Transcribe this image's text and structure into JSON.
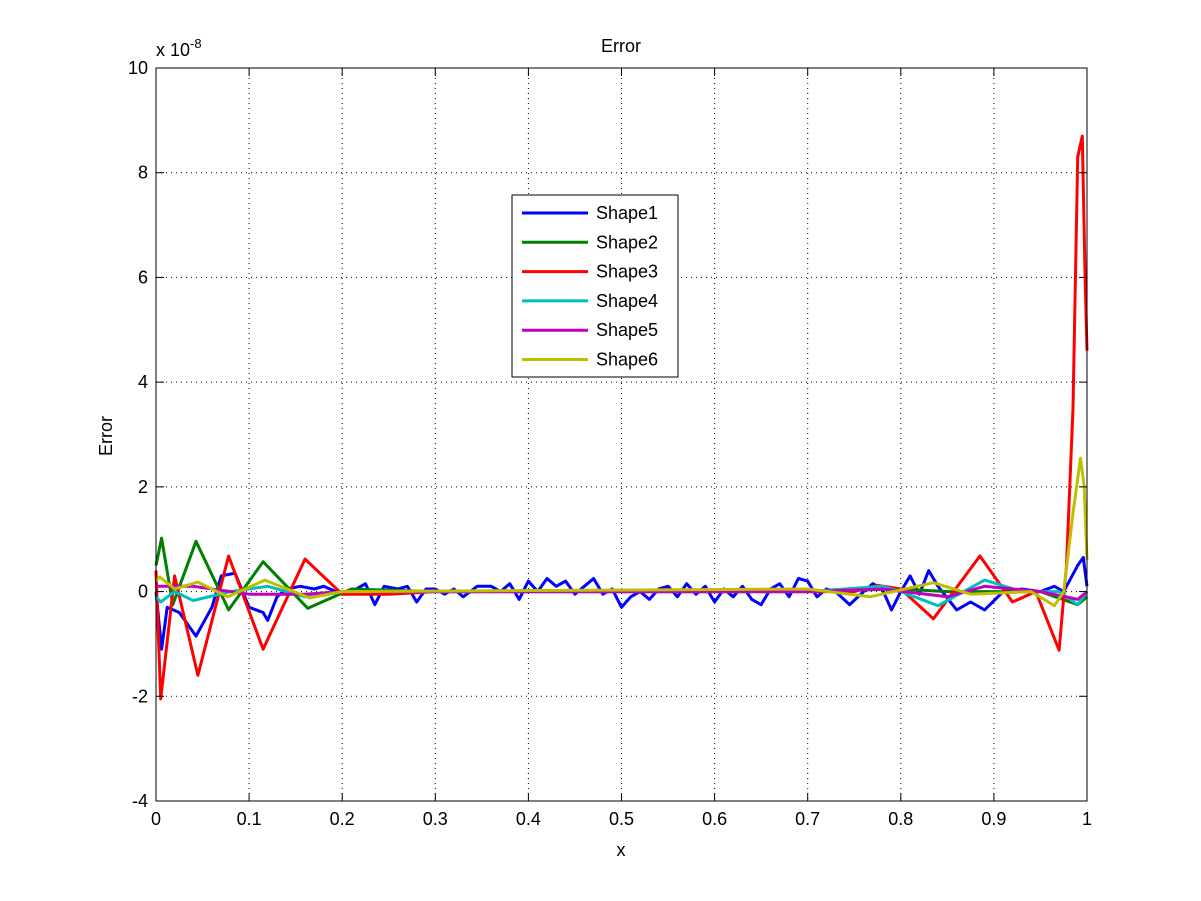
{
  "chart_data": {
    "type": "line",
    "title": "Error",
    "xlabel": "x",
    "ylabel": "Error",
    "y_exponent_label": "x 10",
    "y_exponent_power": "-8",
    "xlim": [
      0,
      1
    ],
    "ylim": [
      -4,
      10
    ],
    "xticks": [
      "0",
      "0.1",
      "0.2",
      "0.3",
      "0.4",
      "0.5",
      "0.6",
      "0.7",
      "0.8",
      "0.9",
      "1"
    ],
    "yticks": [
      "-4",
      "-2",
      "0",
      "2",
      "4",
      "6",
      "8",
      "10"
    ],
    "grid": true,
    "legend_position": "upper-center",
    "series": [
      {
        "name": "Shape1",
        "color": "#0000ff",
        "points": [
          [
            0,
            0
          ],
          [
            0.006,
            -1.1
          ],
          [
            0.012,
            -0.3
          ],
          [
            0.025,
            -0.4
          ],
          [
            0.043,
            -0.85
          ],
          [
            0.06,
            -0.3
          ],
          [
            0.07,
            0.3
          ],
          [
            0.085,
            0.35
          ],
          [
            0.1,
            -0.3
          ],
          [
            0.115,
            -0.4
          ],
          [
            0.12,
            -0.55
          ],
          [
            0.13,
            -0.1
          ],
          [
            0.14,
            0.05
          ],
          [
            0.155,
            0.1
          ],
          [
            0.17,
            0.05
          ],
          [
            0.18,
            0.1
          ],
          [
            0.2,
            -0.05
          ],
          [
            0.215,
            0.05
          ],
          [
            0.225,
            0.15
          ],
          [
            0.235,
            -0.25
          ],
          [
            0.245,
            0.1
          ],
          [
            0.26,
            0.05
          ],
          [
            0.27,
            0.1
          ],
          [
            0.28,
            -0.2
          ],
          [
            0.29,
            0.05
          ],
          [
            0.3,
            0.05
          ],
          [
            0.31,
            -0.05
          ],
          [
            0.32,
            0.05
          ],
          [
            0.33,
            -0.1
          ],
          [
            0.345,
            0.1
          ],
          [
            0.36,
            0.1
          ],
          [
            0.37,
            0.0
          ],
          [
            0.38,
            0.15
          ],
          [
            0.39,
            -0.15
          ],
          [
            0.4,
            0.2
          ],
          [
            0.41,
            0.0
          ],
          [
            0.42,
            0.25
          ],
          [
            0.43,
            0.1
          ],
          [
            0.44,
            0.2
          ],
          [
            0.45,
            -0.05
          ],
          [
            0.46,
            0.1
          ],
          [
            0.47,
            0.25
          ],
          [
            0.48,
            -0.05
          ],
          [
            0.49,
            0.05
          ],
          [
            0.5,
            -0.3
          ],
          [
            0.51,
            -0.1
          ],
          [
            0.52,
            0.0
          ],
          [
            0.53,
            -0.15
          ],
          [
            0.54,
            0.05
          ],
          [
            0.55,
            0.1
          ],
          [
            0.56,
            -0.1
          ],
          [
            0.57,
            0.15
          ],
          [
            0.58,
            -0.05
          ],
          [
            0.59,
            0.1
          ],
          [
            0.6,
            -0.2
          ],
          [
            0.61,
            0.05
          ],
          [
            0.62,
            -0.1
          ],
          [
            0.63,
            0.1
          ],
          [
            0.64,
            -0.15
          ],
          [
            0.65,
            -0.25
          ],
          [
            0.66,
            0.05
          ],
          [
            0.67,
            0.15
          ],
          [
            0.68,
            -0.1
          ],
          [
            0.69,
            0.25
          ],
          [
            0.7,
            0.2
          ],
          [
            0.71,
            -0.1
          ],
          [
            0.72,
            0.05
          ],
          [
            0.73,
            0.0
          ],
          [
            0.745,
            -0.25
          ],
          [
            0.76,
            0.0
          ],
          [
            0.77,
            0.15
          ],
          [
            0.78,
            0.05
          ],
          [
            0.79,
            -0.35
          ],
          [
            0.8,
            0.0
          ],
          [
            0.81,
            0.3
          ],
          [
            0.82,
            -0.05
          ],
          [
            0.83,
            0.4
          ],
          [
            0.84,
            0.1
          ],
          [
            0.86,
            -0.35
          ],
          [
            0.875,
            -0.2
          ],
          [
            0.89,
            -0.35
          ],
          [
            0.91,
            0.0
          ],
          [
            0.93,
            0.05
          ],
          [
            0.95,
            0.0
          ],
          [
            0.965,
            0.1
          ],
          [
            0.975,
            0.0
          ],
          [
            0.99,
            0.5
          ],
          [
            0.996,
            0.65
          ],
          [
            1,
            0.1
          ]
        ]
      },
      {
        "name": "Shape2",
        "color": "#008000",
        "points": [
          [
            0,
            0.5
          ],
          [
            0.006,
            1.02
          ],
          [
            0.018,
            -0.25
          ],
          [
            0.043,
            0.96
          ],
          [
            0.078,
            -0.35
          ],
          [
            0.115,
            0.57
          ],
          [
            0.163,
            -0.32
          ],
          [
            0.21,
            0.05
          ],
          [
            0.3,
            0.0
          ],
          [
            0.7,
            0.0
          ],
          [
            0.8,
            0.05
          ],
          [
            0.85,
            0.0
          ],
          [
            0.95,
            0.0
          ],
          [
            0.99,
            -0.25
          ],
          [
            1,
            -0.1
          ]
        ]
      },
      {
        "name": "Shape3",
        "color": "#ff0000",
        "points": [
          [
            0,
            0.4
          ],
          [
            0.005,
            -2.05
          ],
          [
            0.02,
            0.3
          ],
          [
            0.045,
            -1.6
          ],
          [
            0.078,
            0.68
          ],
          [
            0.115,
            -1.1
          ],
          [
            0.16,
            0.62
          ],
          [
            0.2,
            -0.05
          ],
          [
            0.25,
            -0.05
          ],
          [
            0.3,
            0.0
          ],
          [
            0.7,
            0.0
          ],
          [
            0.75,
            0.0
          ],
          [
            0.775,
            0.12
          ],
          [
            0.8,
            0.05
          ],
          [
            0.835,
            -0.52
          ],
          [
            0.885,
            0.68
          ],
          [
            0.92,
            -0.2
          ],
          [
            0.945,
            0.0
          ],
          [
            0.97,
            -1.12
          ],
          [
            0.978,
            0.5
          ],
          [
            0.985,
            3.5
          ],
          [
            0.99,
            8.3
          ],
          [
            0.995,
            8.7
          ],
          [
            0.998,
            6.0
          ],
          [
            1,
            4.6
          ]
        ]
      },
      {
        "name": "Shape4",
        "color": "#00bfbf",
        "points": [
          [
            0,
            -0.1
          ],
          [
            0.005,
            -0.2
          ],
          [
            0.02,
            0.0
          ],
          [
            0.04,
            -0.17
          ],
          [
            0.08,
            0.0
          ],
          [
            0.12,
            0.1
          ],
          [
            0.16,
            -0.1
          ],
          [
            0.2,
            0.0
          ],
          [
            0.7,
            0.0
          ],
          [
            0.78,
            0.1
          ],
          [
            0.8,
            0.0
          ],
          [
            0.84,
            -0.27
          ],
          [
            0.89,
            0.22
          ],
          [
            0.93,
            0.0
          ],
          [
            0.97,
            0.0
          ],
          [
            0.99,
            -0.25
          ],
          [
            1,
            0
          ]
        ]
      },
      {
        "name": "Shape5",
        "color": "#bf00bf",
        "points": [
          [
            0,
            0.1
          ],
          [
            0.04,
            0.1
          ],
          [
            0.1,
            -0.05
          ],
          [
            0.16,
            -0.05
          ],
          [
            0.2,
            0.0
          ],
          [
            0.7,
            0.0
          ],
          [
            0.78,
            0.05
          ],
          [
            0.85,
            -0.1
          ],
          [
            0.89,
            0.1
          ],
          [
            0.95,
            0.0
          ],
          [
            0.99,
            -0.15
          ],
          [
            1,
            0
          ]
        ]
      },
      {
        "name": "Shape6",
        "color": "#bfbf00",
        "points": [
          [
            0,
            0.2
          ],
          [
            0.004,
            0.28
          ],
          [
            0.02,
            0.05
          ],
          [
            0.045,
            0.18
          ],
          [
            0.077,
            -0.1
          ],
          [
            0.117,
            0.22
          ],
          [
            0.165,
            -0.12
          ],
          [
            0.2,
            0.0
          ],
          [
            0.7,
            0.05
          ],
          [
            0.767,
            -0.1
          ],
          [
            0.835,
            0.17
          ],
          [
            0.875,
            -0.05
          ],
          [
            0.94,
            0.0
          ],
          [
            0.965,
            -0.27
          ],
          [
            0.975,
            0.0
          ],
          [
            0.985,
            1.5
          ],
          [
            0.993,
            2.55
          ],
          [
            0.997,
            2.0
          ],
          [
            1,
            0.6
          ]
        ]
      }
    ]
  }
}
